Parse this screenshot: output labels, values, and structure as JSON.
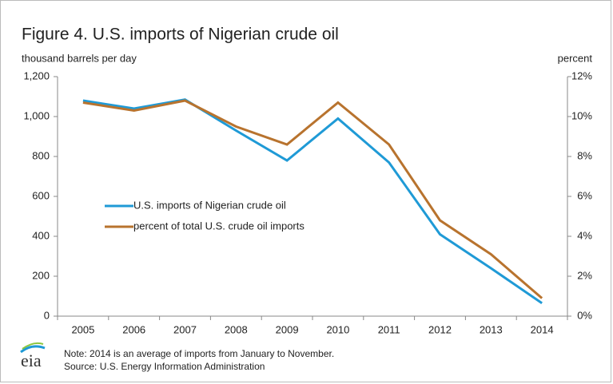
{
  "chart_data": {
    "type": "line",
    "title": "Figure 4. U.S. imports of Nigerian crude oil",
    "y_label": "thousand barrels per day",
    "y2_label": "percent",
    "categories": [
      "2005",
      "2006",
      "2007",
      "2008",
      "2009",
      "2010",
      "2011",
      "2012",
      "2013",
      "2014"
    ],
    "series": [
      {
        "name": "U.S. imports of Nigerian crude oil",
        "color": "#1f9ad6",
        "values": [
          1080,
          1040,
          1085,
          930,
          780,
          990,
          770,
          410,
          240,
          65
        ]
      },
      {
        "name": "percent of total U.S. crude oil imports",
        "color": "#b8732e",
        "axis": "y2",
        "values": [
          10.7,
          10.3,
          10.8,
          9.5,
          8.6,
          10.7,
          8.6,
          4.8,
          3.1,
          0.9
        ]
      }
    ],
    "ylim": [
      0,
      1200
    ],
    "yticks": [
      0,
      200,
      400,
      600,
      800,
      {
        "value": 1000,
        "label": "1,000"
      },
      {
        "value": 1200,
        "label": "1,200"
      }
    ],
    "y2lim": [
      0,
      12
    ],
    "y2ticks": [
      {
        "value": 0,
        "label": "0%"
      },
      {
        "value": 2,
        "label": "2%"
      },
      {
        "value": 4,
        "label": "4%"
      },
      {
        "value": 6,
        "label": "6%"
      },
      {
        "value": 8,
        "label": "8%"
      },
      {
        "value": 10,
        "label": "10%"
      },
      {
        "value": 12,
        "label": "12%"
      }
    ],
    "grid": false,
    "legend": "center-left",
    "note": "Note: 2014 is an average of imports from January to November.",
    "source": "Source: U.S. Energy Information Administration",
    "logo": "eia"
  }
}
